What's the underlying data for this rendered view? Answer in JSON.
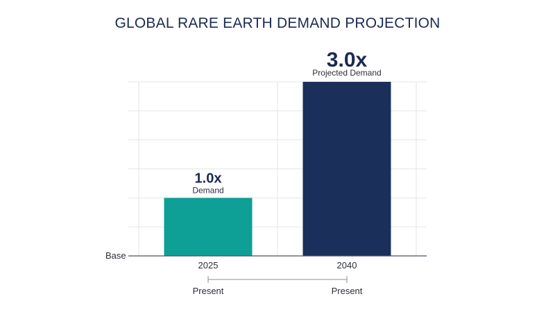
{
  "chart_data": {
    "type": "bar",
    "title": "GLOBAL RARE EARTH DEMAND PROJECTION",
    "categories": [
      "2025",
      "2040"
    ],
    "values": [
      1.0,
      3.0
    ],
    "value_labels": [
      "1.0x",
      "3.0x"
    ],
    "bar_sublabels": [
      "Demand",
      "Projected Demand"
    ],
    "bar_colors": [
      "#0e9f97",
      "#1b2f5b"
    ],
    "baseline_label": "Base",
    "ylim": [
      0,
      3.0
    ],
    "grid": true,
    "timeline": {
      "start_label": "Present",
      "end_label": "Present"
    },
    "xlabel": "",
    "ylabel": ""
  }
}
